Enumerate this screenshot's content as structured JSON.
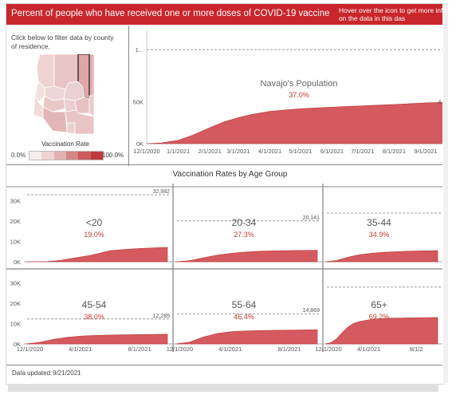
{
  "header": {
    "title": "Percent of people who have received one or more doses of COVID-19 vaccine",
    "hint_line1": "Hover over the icon to get more infor",
    "hint_line2": "on the data in this das"
  },
  "map_panel": {
    "filter_text": "Click below to filter data by county of residence.",
    "legend_title": "Vaccination Rate",
    "legend_min": "0.0%",
    "legend_max": "100.0%",
    "legend_colors": [
      "#f7eded",
      "#efd3d3",
      "#e3b1b1",
      "#d58686",
      "#c95c5c",
      "#c03a3f"
    ]
  },
  "section_title": "Vaccination Rates by Age Group",
  "footer": {
    "updated_label": "Data updated:",
    "updated_value": "9/21/2021"
  },
  "colors": {
    "fill": "#d45a5f",
    "accent": "#c8262b",
    "percent": "#c0392b"
  },
  "chart_data": [
    {
      "type": "area",
      "title": "Navajo's Population",
      "percent": "37.0%",
      "x": [
        "12/1/2020",
        "12/15/2020",
        "1/1/2021",
        "1/15/2021",
        "2/1/2021",
        "2/15/2021",
        "3/1/2021",
        "3/15/2021",
        "4/1/2021",
        "4/15/2021",
        "5/1/2021",
        "5/15/2021",
        "6/1/2021",
        "6/15/2021",
        "7/1/2021",
        "7/15/2021",
        "8/1/2021",
        "8/15/2021",
        "9/1/2021",
        "9/21/2021"
      ],
      "values": [
        0,
        800,
        4000,
        10000,
        19000,
        26000,
        31000,
        35000,
        38500,
        40000,
        41500,
        42500,
        43500,
        44300,
        45000,
        45800,
        46600,
        47500,
        48500,
        49500
      ],
      "x_ticks": [
        "12/1/2020",
        "1/1/2021",
        "2/1/2021",
        "3/1/2021",
        "4/1/2021",
        "5/1/2021",
        "6/1/2021",
        "7/1/2021",
        "8/1/2021",
        "9/1/2021"
      ],
      "y_ticks": [
        "0K",
        "50K",
        "1..."
      ],
      "ylim": [
        0,
        135000
      ],
      "reference_value": 112000,
      "end_label": "4"
    },
    {
      "type": "area",
      "title": "<20",
      "percent": "19.0%",
      "reference_label": "32,982",
      "x_ticks": [],
      "y_ticks": [
        "0K",
        "10K",
        "20K",
        "30K"
      ],
      "x": [
        0,
        0.15,
        0.25,
        0.35,
        0.45,
        0.5,
        0.55,
        0.6,
        0.7,
        0.8,
        0.9,
        1
      ],
      "values": [
        0,
        100,
        700,
        1900,
        3100,
        3800,
        4700,
        5500,
        6100,
        6500,
        6800,
        7100
      ]
    },
    {
      "type": "area",
      "title": "20-34",
      "percent": "27.3%",
      "reference_label": "20,141",
      "x_ticks": [],
      "y_ticks": [],
      "x": [
        0,
        0.1,
        0.2,
        0.3,
        0.4,
        0.5,
        0.6,
        0.7,
        0.8,
        0.9,
        1
      ],
      "values": [
        0,
        500,
        2000,
        3300,
        4200,
        4800,
        5200,
        5400,
        5500,
        5600,
        5700
      ]
    },
    {
      "type": "area",
      "title": "35-44",
      "percent": "34.9%",
      "reference_label": "",
      "x_ticks": [],
      "y_ticks": [],
      "x": [
        0,
        0.1,
        0.2,
        0.3,
        0.4,
        0.5,
        0.6,
        0.7,
        0.8,
        0.9,
        1
      ],
      "values": [
        0,
        600,
        2200,
        3400,
        4100,
        4600,
        4900,
        5100,
        5300,
        5400,
        5500
      ]
    },
    {
      "type": "area",
      "title": "45-54",
      "percent": "38.0%",
      "reference_label": "12,285",
      "x_ticks": [
        "12/1/2020",
        "4/1/2021",
        "8/1/2021"
      ],
      "y_ticks": [
        "0K",
        "10K",
        "20K",
        "30K"
      ],
      "x": [
        0,
        0.1,
        0.2,
        0.3,
        0.4,
        0.5,
        0.6,
        0.7,
        0.8,
        0.9,
        1
      ],
      "values": [
        0,
        800,
        2300,
        3300,
        3900,
        4200,
        4400,
        4500,
        4600,
        4700,
        4800
      ]
    },
    {
      "type": "area",
      "title": "55-64",
      "percent": "46.4%",
      "reference_label": "14,869",
      "x_ticks": [
        "12/1/2020",
        "4/1/2021",
        "8/1/2021"
      ],
      "y_ticks": [],
      "x": [
        0,
        0.1,
        0.2,
        0.3,
        0.4,
        0.5,
        0.6,
        0.7,
        0.8,
        0.9,
        1
      ],
      "values": [
        0,
        900,
        3500,
        5200,
        6100,
        6400,
        6600,
        6700,
        6800,
        6900,
        7000
      ]
    },
    {
      "type": "area",
      "title": "65+",
      "percent": "69.2%",
      "reference_label": "",
      "x_ticks": [
        "12/1/2020",
        "4/1/2021",
        "8/1/2"
      ],
      "y_ticks": [],
      "x": [
        0,
        0.05,
        0.1,
        0.15,
        0.2,
        0.25,
        0.3,
        0.4,
        0.5,
        0.6,
        0.7,
        0.8,
        0.9,
        1
      ],
      "values": [
        0,
        600,
        2500,
        5500,
        8200,
        10000,
        11000,
        12000,
        12500,
        12700,
        12800,
        12900,
        12950,
        13000
      ]
    }
  ]
}
